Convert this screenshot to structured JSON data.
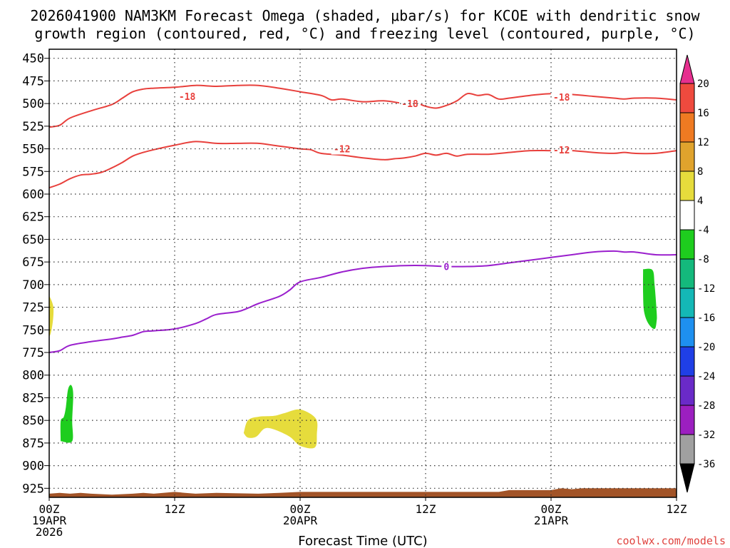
{
  "chart_data": {
    "type": "time-height cross section",
    "title_line1": "2026041900 NAM3KM Forecast Omega (shaded, μbar/s) for KCOE with dendritic snow",
    "title_line2": "growth region (contoured, red, °C) and freezing level (contoured, purple, °C)",
    "xlabel": "Forecast Time (UTC)",
    "credit": "coolwx.com/models",
    "x_unit": "forecast hour",
    "xlim": [
      0,
      60
    ],
    "y_unit": "hPa",
    "ylim": [
      440,
      935
    ],
    "yticks": [
      450,
      475,
      500,
      525,
      550,
      575,
      600,
      625,
      650,
      675,
      700,
      725,
      750,
      775,
      800,
      825,
      850,
      875,
      900,
      925
    ],
    "grid": true,
    "xticks": [
      {
        "hour": 0,
        "lines": [
          "00Z",
          "19APR",
          "2026"
        ]
      },
      {
        "hour": 12,
        "lines": [
          "12Z"
        ]
      },
      {
        "hour": 24,
        "lines": [
          "00Z",
          "20APR"
        ]
      },
      {
        "hour": 36,
        "lines": [
          "12Z"
        ]
      },
      {
        "hour": 48,
        "lines": [
          "00Z",
          "21APR"
        ]
      },
      {
        "hour": 60,
        "lines": [
          "12Z"
        ]
      }
    ],
    "contours": [
      {
        "name": "dgz-top-minus18",
        "label": "-18",
        "color": "#e8403c",
        "label_positions": [
          [
            13.2,
            492
          ],
          [
            34.5,
            500
          ],
          [
            49.0,
            493
          ]
        ],
        "points": [
          [
            0,
            526
          ],
          [
            1,
            524
          ],
          [
            2,
            516
          ],
          [
            4,
            508
          ],
          [
            6,
            501
          ],
          [
            7,
            494
          ],
          [
            8,
            487
          ],
          [
            9,
            484
          ],
          [
            10,
            483
          ],
          [
            12,
            482
          ],
          [
            14,
            480
          ],
          [
            16,
            481
          ],
          [
            18,
            480
          ],
          [
            20,
            480
          ],
          [
            22,
            483
          ],
          [
            24,
            487
          ],
          [
            26,
            491
          ],
          [
            27,
            496
          ],
          [
            28,
            495
          ],
          [
            30,
            498
          ],
          [
            32,
            497
          ],
          [
            34,
            500
          ],
          [
            35,
            499
          ],
          [
            36,
            503
          ],
          [
            37,
            505
          ],
          [
            38,
            502
          ],
          [
            39,
            497
          ],
          [
            40,
            489
          ],
          [
            41,
            491
          ],
          [
            42,
            490
          ],
          [
            43,
            495
          ],
          [
            44,
            494
          ],
          [
            46,
            491
          ],
          [
            48,
            489
          ],
          [
            50,
            490
          ],
          [
            52,
            492
          ],
          [
            54,
            494
          ],
          [
            55,
            495
          ],
          [
            56,
            494
          ],
          [
            58,
            494
          ],
          [
            60,
            496
          ]
        ]
      },
      {
        "name": "dgz-bottom-minus12",
        "label": "-12",
        "color": "#e8403c",
        "label_positions": [
          [
            28.0,
            550
          ],
          [
            49.0,
            551
          ]
        ],
        "points": [
          [
            0,
            593
          ],
          [
            1,
            589
          ],
          [
            2,
            583
          ],
          [
            3,
            579
          ],
          [
            4,
            578
          ],
          [
            5,
            576
          ],
          [
            6,
            571
          ],
          [
            7,
            565
          ],
          [
            8,
            558
          ],
          [
            9,
            554
          ],
          [
            10,
            551
          ],
          [
            12,
            546
          ],
          [
            14,
            542
          ],
          [
            16,
            544
          ],
          [
            18,
            544
          ],
          [
            20,
            544
          ],
          [
            22,
            547
          ],
          [
            24,
            550
          ],
          [
            25,
            551
          ],
          [
            26,
            555
          ],
          [
            28,
            557
          ],
          [
            30,
            560
          ],
          [
            32,
            562
          ],
          [
            33,
            561
          ],
          [
            34,
            560
          ],
          [
            35,
            558
          ],
          [
            36,
            555
          ],
          [
            37,
            557
          ],
          [
            38,
            555
          ],
          [
            39,
            558
          ],
          [
            40,
            556
          ],
          [
            42,
            556
          ],
          [
            44,
            554
          ],
          [
            46,
            552
          ],
          [
            48,
            552
          ],
          [
            50,
            552
          ],
          [
            52,
            554
          ],
          [
            54,
            555
          ],
          [
            55,
            554
          ],
          [
            56,
            555
          ],
          [
            58,
            555
          ],
          [
            60,
            552
          ]
        ]
      },
      {
        "name": "freezing-level-0",
        "label": "0",
        "color": "#9a1fcd",
        "label_positions": [
          [
            38.0,
            680
          ]
        ],
        "points": [
          [
            0,
            775
          ],
          [
            1,
            773
          ],
          [
            2,
            767
          ],
          [
            4,
            763
          ],
          [
            6,
            760
          ],
          [
            7,
            758
          ],
          [
            8,
            756
          ],
          [
            9,
            752
          ],
          [
            10,
            751
          ],
          [
            12,
            749
          ],
          [
            14,
            743
          ],
          [
            15,
            738
          ],
          [
            16,
            733
          ],
          [
            18,
            730
          ],
          [
            19,
            726
          ],
          [
            20,
            721
          ],
          [
            22,
            713
          ],
          [
            23,
            706
          ],
          [
            24,
            697
          ],
          [
            26,
            692
          ],
          [
            28,
            686
          ],
          [
            30,
            682
          ],
          [
            32,
            680
          ],
          [
            34,
            679
          ],
          [
            36,
            679
          ],
          [
            38,
            680
          ],
          [
            40,
            680
          ],
          [
            42,
            679
          ],
          [
            44,
            676
          ],
          [
            46,
            673
          ],
          [
            48,
            670
          ],
          [
            50,
            667
          ],
          [
            52,
            664
          ],
          [
            54,
            663
          ],
          [
            55,
            664
          ],
          [
            56,
            664
          ],
          [
            58,
            667
          ],
          [
            60,
            667
          ]
        ]
      }
    ],
    "shaded_regions": [
      {
        "name": "omega-positive-left-edge",
        "color_key": "4_to_8",
        "points": [
          [
            0,
            712
          ],
          [
            0.4,
            725
          ],
          [
            0.3,
            745
          ],
          [
            0,
            755
          ]
        ]
      },
      {
        "name": "omega-negative-left",
        "color_key": "-8_to_-4",
        "points": [
          [
            1.1,
            873
          ],
          [
            1.1,
            851
          ],
          [
            1.4,
            846
          ],
          [
            1.6,
            835
          ],
          [
            1.8,
            816
          ],
          [
            2.1,
            811
          ],
          [
            2.3,
            821
          ],
          [
            2.2,
            850
          ],
          [
            2.2,
            873
          ]
        ]
      },
      {
        "name": "omega-positive-center",
        "color_key": "4_to_8",
        "points": [
          [
            18.6,
            864
          ],
          [
            19.0,
            850
          ],
          [
            20.0,
            846
          ],
          [
            21.5,
            845
          ],
          [
            22.5,
            842
          ],
          [
            24.0,
            838
          ],
          [
            25.5,
            848
          ],
          [
            25.6,
            865
          ],
          [
            25.4,
            880
          ],
          [
            24.0,
            878
          ],
          [
            23.0,
            868
          ],
          [
            21.5,
            860
          ],
          [
            20.6,
            859
          ],
          [
            19.8,
            868
          ],
          [
            19.0,
            869
          ]
        ]
      },
      {
        "name": "omega-negative-right",
        "color_key": "-8_to_-4",
        "points": [
          [
            56.8,
            683
          ],
          [
            57.7,
            684
          ],
          [
            57.9,
            700
          ],
          [
            58.1,
            730
          ],
          [
            58.1,
            740
          ],
          [
            57.9,
            749
          ],
          [
            57.3,
            743
          ],
          [
            56.9,
            730
          ],
          [
            56.8,
            710
          ]
        ]
      }
    ],
    "terrain": {
      "color": "#a25428",
      "name": "surface-terrain",
      "top_pressure": [
        [
          0,
          931
        ],
        [
          1,
          930
        ],
        [
          2,
          931
        ],
        [
          3,
          930
        ],
        [
          4,
          931
        ],
        [
          6,
          932
        ],
        [
          8,
          931
        ],
        [
          9,
          930
        ],
        [
          10,
          931
        ],
        [
          12,
          929
        ],
        [
          13,
          930
        ],
        [
          14,
          931
        ],
        [
          16,
          930
        ],
        [
          20,
          931
        ],
        [
          22,
          930
        ],
        [
          24,
          929
        ],
        [
          30,
          929
        ],
        [
          36,
          929
        ],
        [
          42,
          929
        ],
        [
          43,
          929
        ],
        [
          44,
          927
        ],
        [
          48,
          927
        ],
        [
          49,
          925
        ],
        [
          50,
          926
        ],
        [
          51,
          925
        ],
        [
          54,
          925
        ],
        [
          60,
          925
        ]
      ]
    },
    "colorbar": {
      "label_ticks": [
        "20",
        "16",
        "12",
        "8",
        "4",
        "-4",
        "-8",
        "-12",
        "-16",
        "-20",
        "-24",
        "-28",
        "-32",
        "-36"
      ],
      "bins": [
        {
          "key": "above_20",
          "color": "#e62f8f",
          "triangle": true
        },
        {
          "key": "16_to_20",
          "color": "#ef4a3e"
        },
        {
          "key": "12_to_16",
          "color": "#ef7a22"
        },
        {
          "key": "8_to_12",
          "color": "#e0a32d"
        },
        {
          "key": "4_to_8",
          "color": "#e6dc3c"
        },
        {
          "key": "-4_to_4",
          "color": "#ffffff"
        },
        {
          "key": "-8_to_-4",
          "color": "#1ecd1e"
        },
        {
          "key": "-12_to_-8",
          "color": "#14b97c"
        },
        {
          "key": "-16_to_-12",
          "color": "#14b8b6"
        },
        {
          "key": "-20_to_-16",
          "color": "#1e90f0"
        },
        {
          "key": "-24_to_-20",
          "color": "#1f3fe6"
        },
        {
          "key": "-28_to_-24",
          "color": "#6a2ac8"
        },
        {
          "key": "-32_to_-28",
          "color": "#9c1fc0"
        },
        {
          "key": "-36_to_-32",
          "color": "#a0a0a0"
        },
        {
          "key": "below_-36",
          "color": "#000000",
          "triangle": true
        }
      ]
    }
  }
}
